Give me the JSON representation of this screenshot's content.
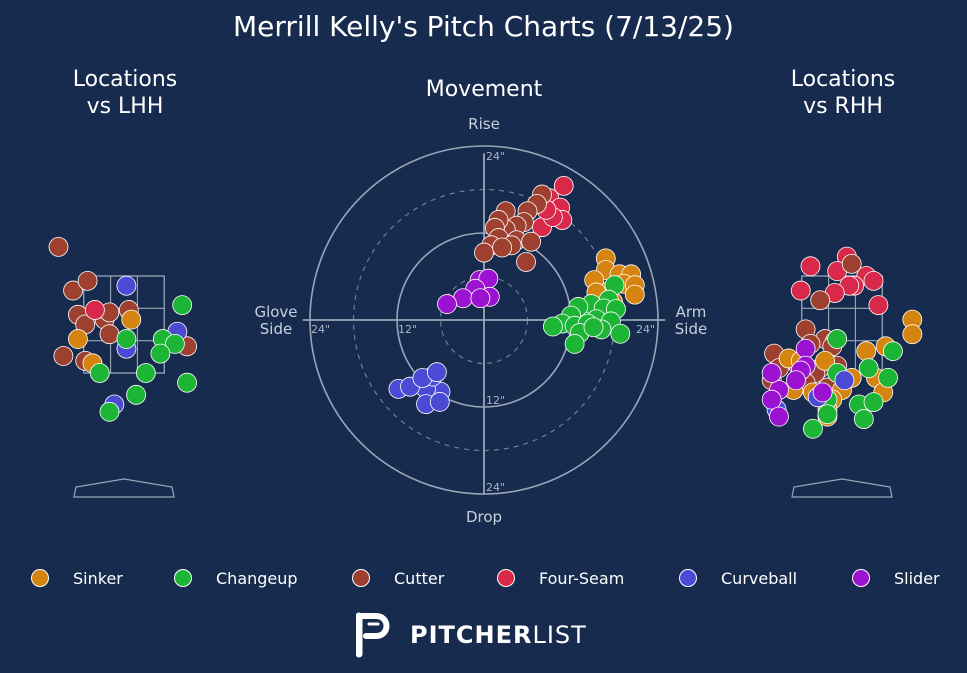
{
  "title": "Merrill Kelly's Pitch Charts (7/13/25)",
  "colors": {
    "background": "#162b4d",
    "grid": "#9aa6b8",
    "Sinker": "#d4840f",
    "Changeup": "#1db536",
    "Cutter": "#9e4030",
    "Four-Seam": "#d9294a",
    "Curveball": "#4a4ad4",
    "Slider": "#9b12d0"
  },
  "legend": {
    "items": [
      {
        "label": "Sinker",
        "color": "#d4840f"
      },
      {
        "label": "Changeup",
        "color": "#1db536"
      },
      {
        "label": "Cutter",
        "color": "#9e4030"
      },
      {
        "label": "Four-Seam",
        "color": "#d9294a"
      },
      {
        "label": "Curveball",
        "color": "#4a4ad4"
      },
      {
        "label": "Slider",
        "color": "#9b12d0"
      }
    ]
  },
  "logo": {
    "bold": "PITCHER",
    "light": "LIST",
    "icon": "pitcherlist-p-icon"
  },
  "chart_data": [
    {
      "type": "scatter",
      "title": "Locations\nvs LHH",
      "title_lines": [
        "Locations",
        "vs LHH"
      ],
      "xlabel": "",
      "ylabel": "",
      "x_units": "feet (horizontal plate location)",
      "y_units": "feet (height)",
      "xlim": [
        -1.5,
        1.5
      ],
      "ylim": [
        0.3,
        4.6
      ],
      "strike_zone": {
        "x": [
          -0.83,
          0.83
        ],
        "y": [
          1.5,
          3.5
        ]
      },
      "points": [
        {
          "pitch": "Cutter",
          "x": -1.35,
          "y": 4.1
        },
        {
          "pitch": "Cutter",
          "x": -1.05,
          "y": 3.2
        },
        {
          "pitch": "Cutter",
          "x": -0.75,
          "y": 3.4
        },
        {
          "pitch": "Cutter",
          "x": -0.95,
          "y": 2.7
        },
        {
          "pitch": "Cutter",
          "x": -0.8,
          "y": 2.5
        },
        {
          "pitch": "Cutter",
          "x": -0.4,
          "y": 2.6
        },
        {
          "pitch": "Cutter",
          "x": -0.3,
          "y": 2.75
        },
        {
          "pitch": "Cutter",
          "x": 0.1,
          "y": 2.8
        },
        {
          "pitch": "Cutter",
          "x": -0.3,
          "y": 2.3
        },
        {
          "pitch": "Cutter",
          "x": -1.25,
          "y": 1.85
        },
        {
          "pitch": "Cutter",
          "x": -0.8,
          "y": 1.75
        },
        {
          "pitch": "Cutter",
          "x": 1.3,
          "y": 2.05
        },
        {
          "pitch": "Four-Seam",
          "x": -0.6,
          "y": 2.8
        },
        {
          "pitch": "Sinker",
          "x": 0.15,
          "y": 2.6
        },
        {
          "pitch": "Sinker",
          "x": -0.95,
          "y": 2.2
        },
        {
          "pitch": "Sinker",
          "x": -0.65,
          "y": 1.7
        },
        {
          "pitch": "Curveball",
          "x": 0.05,
          "y": 3.3
        },
        {
          "pitch": "Curveball",
          "x": 1.1,
          "y": 2.35
        },
        {
          "pitch": "Curveball",
          "x": 0.05,
          "y": 2.0
        },
        {
          "pitch": "Curveball",
          "x": -0.2,
          "y": 0.85
        },
        {
          "pitch": "Changeup",
          "x": 1.2,
          "y": 2.9
        },
        {
          "pitch": "Changeup",
          "x": 0.8,
          "y": 2.2
        },
        {
          "pitch": "Changeup",
          "x": 1.05,
          "y": 2.1
        },
        {
          "pitch": "Changeup",
          "x": 0.75,
          "y": 1.9
        },
        {
          "pitch": "Changeup",
          "x": 0.05,
          "y": 2.2
        },
        {
          "pitch": "Changeup",
          "x": 0.45,
          "y": 1.5
        },
        {
          "pitch": "Changeup",
          "x": -0.5,
          "y": 1.5
        },
        {
          "pitch": "Changeup",
          "x": 1.3,
          "y": 1.3
        },
        {
          "pitch": "Changeup",
          "x": 0.25,
          "y": 1.05
        },
        {
          "pitch": "Changeup",
          "x": -0.3,
          "y": 0.7
        }
      ]
    },
    {
      "type": "scatter",
      "title": "Movement",
      "title_lines": [
        "Movement"
      ],
      "x_units": "inches horizontal break",
      "y_units": "inches induced vertical break",
      "xlim": [
        -30,
        30
      ],
      "ylim": [
        -30,
        30
      ],
      "ring_radii": [
        6,
        12,
        18,
        24
      ],
      "ring_labels": {
        "up": "24\"",
        "down_inner": "12\"",
        "down_outer": "24\"",
        "left_inner": "12\"",
        "left_outer": "24\"",
        "right_outer": "24\""
      },
      "labels": {
        "top": "Rise",
        "bottom": "Drop",
        "left_line1": "Glove",
        "left_line2": "Side",
        "right_line1": "Arm",
        "right_line2": "Side"
      },
      "points": [
        {
          "pitch": "Four-Seam",
          "x": 11,
          "y": 18.5
        },
        {
          "pitch": "Four-Seam",
          "x": 9,
          "y": 16.8
        },
        {
          "pitch": "Four-Seam",
          "x": 10.5,
          "y": 15.5
        },
        {
          "pitch": "Four-Seam",
          "x": 10.8,
          "y": 13.8
        },
        {
          "pitch": "Four-Seam",
          "x": 8,
          "y": 12.8
        },
        {
          "pitch": "Four-Seam",
          "x": 9.5,
          "y": 14.2
        },
        {
          "pitch": "Four-Seam",
          "x": 8.6,
          "y": 15.2
        },
        {
          "pitch": "Cutter",
          "x": 8,
          "y": 17.3
        },
        {
          "pitch": "Cutter",
          "x": 7.3,
          "y": 16.0
        },
        {
          "pitch": "Cutter",
          "x": 6,
          "y": 15.0
        },
        {
          "pitch": "Cutter",
          "x": 3,
          "y": 15.0
        },
        {
          "pitch": "Cutter",
          "x": 5.5,
          "y": 13.5
        },
        {
          "pitch": "Cutter",
          "x": 4.5,
          "y": 13.0
        },
        {
          "pitch": "Cutter",
          "x": 3,
          "y": 12.5
        },
        {
          "pitch": "Cutter",
          "x": 2,
          "y": 13.8
        },
        {
          "pitch": "Cutter",
          "x": 1.5,
          "y": 12.7
        },
        {
          "pitch": "Cutter",
          "x": 4.5,
          "y": 11.0
        },
        {
          "pitch": "Cutter",
          "x": 6.5,
          "y": 10.8
        },
        {
          "pitch": "Cutter",
          "x": 2,
          "y": 11.3
        },
        {
          "pitch": "Cutter",
          "x": 1,
          "y": 10.3
        },
        {
          "pitch": "Cutter",
          "x": 3.8,
          "y": 10.3
        },
        {
          "pitch": "Cutter",
          "x": 5.8,
          "y": 8.0
        },
        {
          "pitch": "Cutter",
          "x": 0,
          "y": 9.3
        },
        {
          "pitch": "Cutter",
          "x": 2.5,
          "y": 10.0
        },
        {
          "pitch": "Sinker",
          "x": 16.8,
          "y": 8.5
        },
        {
          "pitch": "Sinker",
          "x": 16.8,
          "y": 6.9
        },
        {
          "pitch": "Sinker",
          "x": 18.7,
          "y": 6.3
        },
        {
          "pitch": "Sinker",
          "x": 20.3,
          "y": 6.3
        },
        {
          "pitch": "Sinker",
          "x": 15.2,
          "y": 5.5
        },
        {
          "pitch": "Sinker",
          "x": 19.3,
          "y": 5.0
        },
        {
          "pitch": "Sinker",
          "x": 20.8,
          "y": 4.8
        },
        {
          "pitch": "Sinker",
          "x": 17.3,
          "y": 4.0
        },
        {
          "pitch": "Sinker",
          "x": 15.5,
          "y": 3.8
        },
        {
          "pitch": "Sinker",
          "x": 20.8,
          "y": 3.5
        },
        {
          "pitch": "Sinker",
          "x": 17.8,
          "y": 2.5
        },
        {
          "pitch": "Changeup",
          "x": 18,
          "y": 4.8
        },
        {
          "pitch": "Changeup",
          "x": 17.2,
          "y": 2.8
        },
        {
          "pitch": "Changeup",
          "x": 14.8,
          "y": 2.2
        },
        {
          "pitch": "Changeup",
          "x": 13,
          "y": 1.8
        },
        {
          "pitch": "Changeup",
          "x": 16.5,
          "y": 1.6
        },
        {
          "pitch": "Changeup",
          "x": 18.2,
          "y": 1.5
        },
        {
          "pitch": "Changeup",
          "x": 12,
          "y": 0.6
        },
        {
          "pitch": "Changeup",
          "x": 15.5,
          "y": 0.1
        },
        {
          "pitch": "Changeup",
          "x": 17.5,
          "y": -0.2
        },
        {
          "pitch": "Changeup",
          "x": 10.8,
          "y": -0.5
        },
        {
          "pitch": "Changeup",
          "x": 12.5,
          "y": -0.8
        },
        {
          "pitch": "Changeup",
          "x": 14.3,
          "y": -0.5
        },
        {
          "pitch": "Changeup",
          "x": 16.2,
          "y": -1.3
        },
        {
          "pitch": "Changeup",
          "x": 13.2,
          "y": -1.8
        },
        {
          "pitch": "Changeup",
          "x": 18.8,
          "y": -1.9
        },
        {
          "pitch": "Changeup",
          "x": 15.1,
          "y": -1.0
        },
        {
          "pitch": "Changeup",
          "x": 9.5,
          "y": -0.9
        },
        {
          "pitch": "Changeup",
          "x": 12.5,
          "y": -3.3
        },
        {
          "pitch": "Slider",
          "x": -0.6,
          "y": 5.5
        },
        {
          "pitch": "Slider",
          "x": 0.6,
          "y": 5.7
        },
        {
          "pitch": "Slider",
          "x": -1.2,
          "y": 4.3
        },
        {
          "pitch": "Slider",
          "x": -2.9,
          "y": 3.0
        },
        {
          "pitch": "Slider",
          "x": 0.8,
          "y": 3.2
        },
        {
          "pitch": "Slider",
          "x": -5.1,
          "y": 2.2
        },
        {
          "pitch": "Slider",
          "x": -0.5,
          "y": 3.0
        },
        {
          "pitch": "Curveball",
          "x": -6.0,
          "y": -9.9
        },
        {
          "pitch": "Curveball",
          "x": -8.0,
          "y": -9.5
        },
        {
          "pitch": "Curveball",
          "x": -11.8,
          "y": -9.5
        },
        {
          "pitch": "Curveball",
          "x": -10.2,
          "y": -9.2
        },
        {
          "pitch": "Curveball",
          "x": -7.1,
          "y": -7.8
        },
        {
          "pitch": "Curveball",
          "x": -8.5,
          "y": -8.0
        },
        {
          "pitch": "Curveball",
          "x": -6.5,
          "y": -7.2
        },
        {
          "pitch": "Curveball",
          "x": -8.0,
          "y": -11.6
        },
        {
          "pitch": "Curveball",
          "x": -6.1,
          "y": -11.3
        }
      ]
    },
    {
      "type": "scatter",
      "title": "Locations\nvs RHH",
      "title_lines": [
        "Locations",
        "vs RHH"
      ],
      "xlabel": "",
      "ylabel": "",
      "x_units": "feet (horizontal plate location)",
      "y_units": "feet (height)",
      "xlim": [
        -1.5,
        1.5
      ],
      "ylim": [
        0.3,
        4.6
      ],
      "strike_zone": {
        "x": [
          -0.83,
          0.83
        ],
        "y": [
          1.5,
          3.5
        ]
      },
      "points": [
        {
          "pitch": "Four-Seam",
          "x": -0.65,
          "y": 3.7
        },
        {
          "pitch": "Four-Seam",
          "x": 0.1,
          "y": 3.9
        },
        {
          "pitch": "Four-Seam",
          "x": -0.1,
          "y": 3.6
        },
        {
          "pitch": "Four-Seam",
          "x": 0.5,
          "y": 3.5
        },
        {
          "pitch": "Four-Seam",
          "x": 0.65,
          "y": 3.4
        },
        {
          "pitch": "Four-Seam",
          "x": 0.25,
          "y": 3.3
        },
        {
          "pitch": "Four-Seam",
          "x": 0.15,
          "y": 3.3
        },
        {
          "pitch": "Four-Seam",
          "x": -0.85,
          "y": 3.2
        },
        {
          "pitch": "Four-Seam",
          "x": -0.15,
          "y": 3.15
        },
        {
          "pitch": "Four-Seam",
          "x": 0.75,
          "y": 2.9
        },
        {
          "pitch": "Cutter",
          "x": 0.2,
          "y": 3.75
        },
        {
          "pitch": "Cutter",
          "x": -0.45,
          "y": 3.0
        },
        {
          "pitch": "Cutter",
          "x": -0.75,
          "y": 2.4
        },
        {
          "pitch": "Cutter",
          "x": -0.35,
          "y": 2.2
        },
        {
          "pitch": "Cutter",
          "x": -0.65,
          "y": 2.1
        },
        {
          "pitch": "Cutter",
          "x": -0.15,
          "y": 2.15
        },
        {
          "pitch": "Cutter",
          "x": -0.2,
          "y": 2.05
        },
        {
          "pitch": "Cutter",
          "x": -1.4,
          "y": 1.9
        },
        {
          "pitch": "Cutter",
          "x": -1.3,
          "y": 1.6
        },
        {
          "pitch": "Cutter",
          "x": -0.45,
          "y": 1.6
        },
        {
          "pitch": "Cutter",
          "x": -0.9,
          "y": 1.65
        },
        {
          "pitch": "Cutter",
          "x": -0.55,
          "y": 1.5
        },
        {
          "pitch": "Cutter",
          "x": -0.3,
          "y": 1.2
        },
        {
          "pitch": "Cutter",
          "x": -0.1,
          "y": 1.65
        },
        {
          "pitch": "Cutter",
          "x": -0.75,
          "y": 1.3
        },
        {
          "pitch": "Cutter",
          "x": -1.45,
          "y": 1.35
        },
        {
          "pitch": "Sinker",
          "x": 1.45,
          "y": 2.6
        },
        {
          "pitch": "Sinker",
          "x": 1.45,
          "y": 2.3
        },
        {
          "pitch": "Sinker",
          "x": 0.9,
          "y": 2.05
        },
        {
          "pitch": "Sinker",
          "x": 0.5,
          "y": 1.95
        },
        {
          "pitch": "Sinker",
          "x": -1.1,
          "y": 1.8
        },
        {
          "pitch": "Sinker",
          "x": -0.85,
          "y": 1.75
        },
        {
          "pitch": "Sinker",
          "x": -0.35,
          "y": 1.75
        },
        {
          "pitch": "Sinker",
          "x": 0.2,
          "y": 1.4
        },
        {
          "pitch": "Sinker",
          "x": 0.7,
          "y": 1.4
        },
        {
          "pitch": "Sinker",
          "x": -1.0,
          "y": 1.15
        },
        {
          "pitch": "Sinker",
          "x": -0.6,
          "y": 1.1
        },
        {
          "pitch": "Sinker",
          "x": 0.0,
          "y": 1.15
        },
        {
          "pitch": "Sinker",
          "x": 0.85,
          "y": 1.1
        },
        {
          "pitch": "Sinker",
          "x": -0.2,
          "y": 0.95
        },
        {
          "pitch": "Sinker",
          "x": -0.3,
          "y": 0.75
        },
        {
          "pitch": "Sinker",
          "x": -0.3,
          "y": 0.6
        },
        {
          "pitch": "Changeup",
          "x": -0.1,
          "y": 2.2
        },
        {
          "pitch": "Changeup",
          "x": 1.05,
          "y": 1.95
        },
        {
          "pitch": "Changeup",
          "x": 0.55,
          "y": 1.6
        },
        {
          "pitch": "Changeup",
          "x": 0.95,
          "y": 1.4
        },
        {
          "pitch": "Changeup",
          "x": -0.1,
          "y": 1.5
        },
        {
          "pitch": "Changeup",
          "x": -0.3,
          "y": 0.95
        },
        {
          "pitch": "Changeup",
          "x": 0.35,
          "y": 0.85
        },
        {
          "pitch": "Changeup",
          "x": 0.65,
          "y": 0.9
        },
        {
          "pitch": "Changeup",
          "x": -0.3,
          "y": 0.65
        },
        {
          "pitch": "Changeup",
          "x": 0.45,
          "y": 0.55
        },
        {
          "pitch": "Changeup",
          "x": -0.6,
          "y": 0.35
        },
        {
          "pitch": "Curveball",
          "x": 0.05,
          "y": 1.35
        },
        {
          "pitch": "Curveball",
          "x": -0.5,
          "y": 1.0
        },
        {
          "pitch": "Curveball",
          "x": -1.35,
          "y": 0.75
        },
        {
          "pitch": "Slider",
          "x": -0.75,
          "y": 2.0
        },
        {
          "pitch": "Slider",
          "x": -0.75,
          "y": 1.65
        },
        {
          "pitch": "Slider",
          "x": -0.85,
          "y": 1.55
        },
        {
          "pitch": "Slider",
          "x": -0.95,
          "y": 1.35
        },
        {
          "pitch": "Slider",
          "x": -1.3,
          "y": 1.15
        },
        {
          "pitch": "Slider",
          "x": -0.4,
          "y": 1.1
        },
        {
          "pitch": "Slider",
          "x": -1.45,
          "y": 0.95
        },
        {
          "pitch": "Slider",
          "x": -1.3,
          "y": 0.6
        },
        {
          "pitch": "Slider",
          "x": -1.45,
          "y": 1.5
        }
      ]
    }
  ]
}
